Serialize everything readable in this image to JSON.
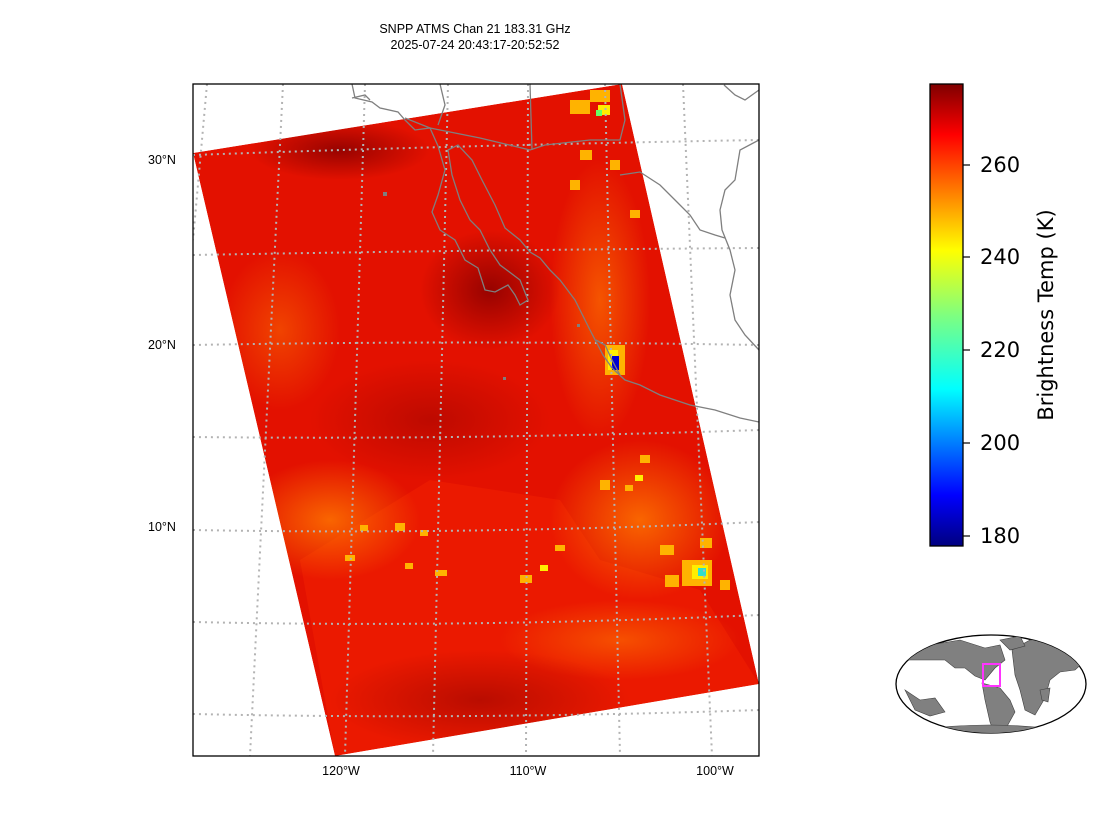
{
  "title": {
    "line1": "SNPP ATMS Chan 21 183.31 GHz",
    "line2": "2025-07-24 20:43:17-20:52:52"
  },
  "map": {
    "lat_labels": [
      "30°N",
      "20°N",
      "10°N"
    ],
    "lon_labels": [
      "120°W",
      "110°W",
      "100°W"
    ],
    "colors": {
      "warm": "#e60000",
      "hot": "#a30000",
      "moderate": "#ff4a00",
      "convective": "#ffd200",
      "cold": "#0000d0",
      "coastline": "#7f7f7f",
      "grid": "#b3b3b3"
    }
  },
  "colorbar": {
    "label": "Brightness Temp (K)",
    "ticks": [
      "260",
      "240",
      "220",
      "200",
      "180"
    ],
    "colormap": "jet",
    "range": [
      178,
      278
    ]
  },
  "inset": {
    "type": "global-locator",
    "highlight_color": "#ff33ff",
    "land_color": "#808080"
  }
}
